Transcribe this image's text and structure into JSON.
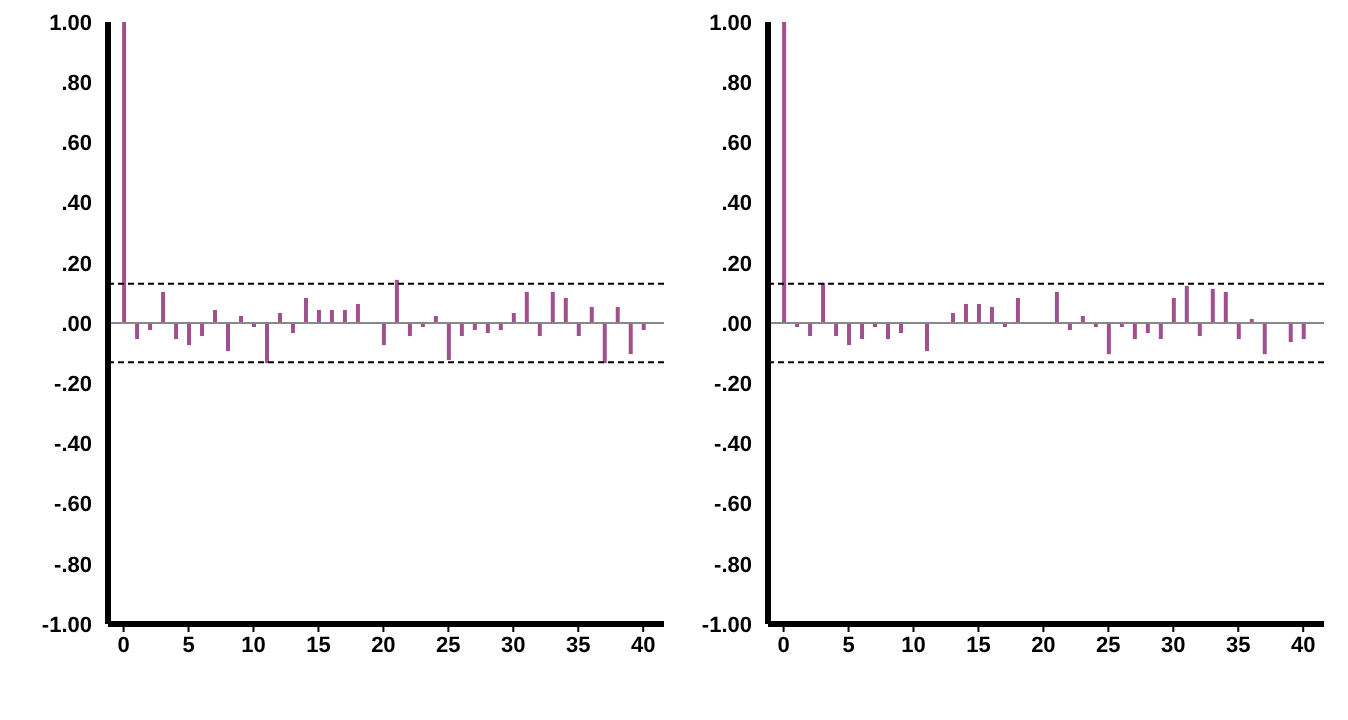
{
  "chart_data": [
    {
      "type": "bar",
      "x": [
        0,
        1,
        2,
        3,
        4,
        5,
        6,
        7,
        8,
        9,
        10,
        11,
        12,
        13,
        14,
        15,
        16,
        17,
        18,
        19,
        20,
        21,
        22,
        23,
        24,
        25,
        26,
        27,
        28,
        29,
        30,
        31,
        32,
        33,
        34,
        35,
        36,
        37,
        38,
        39,
        40
      ],
      "series": [
        {
          "color": "#a0508c",
          "values": [
            1.0,
            -0.05,
            -0.02,
            0.1,
            -0.05,
            -0.07,
            -0.04,
            0.04,
            -0.09,
            0.02,
            -0.01,
            -0.13,
            0.03,
            -0.03,
            0.08,
            0.04,
            0.04,
            0.04,
            0.06,
            0.0,
            -0.07,
            0.14,
            -0.04,
            -0.01,
            0.02,
            -0.12,
            -0.04,
            -0.02,
            -0.03,
            -0.02,
            0.03,
            0.1,
            -0.04,
            0.1,
            0.08,
            -0.04,
            0.05,
            -0.13,
            0.05,
            -0.1,
            -0.02
          ]
        }
      ],
      "xlim": [
        -1.2,
        41.6
      ],
      "xticks": [
        0,
        5,
        10,
        15,
        20,
        25,
        30,
        35,
        40
      ],
      "ylim": [
        -1,
        1
      ],
      "yticks": [
        {
          "value": -1,
          "label": "-1.00"
        },
        {
          "value": -0.8,
          "label": "-.80"
        },
        {
          "value": -0.6,
          "label": "-.60"
        },
        {
          "value": -0.4,
          "label": "-.40"
        },
        {
          "value": -0.2,
          "label": "-.20"
        },
        {
          "value": 0,
          "label": ".00"
        },
        {
          "value": 0.2,
          "label": ".20"
        },
        {
          "value": 0.4,
          "label": ".40"
        },
        {
          "value": 0.6,
          "label": ".60"
        },
        {
          "value": 0.8,
          "label": ".80"
        },
        {
          "value": 1,
          "label": "1.00"
        }
      ],
      "ref_lines": [
        {
          "axis": "y",
          "value": 0,
          "color": "#888888",
          "line_style": "solid"
        },
        {
          "axis": "y",
          "value": 0.13,
          "color": "#000000",
          "line_style": "dashed"
        },
        {
          "axis": "y",
          "value": -0.13,
          "color": "#000000",
          "line_style": "dashed"
        }
      ],
      "grid": false,
      "legend": false
    },
    {
      "type": "bar",
      "x": [
        0,
        1,
        2,
        3,
        4,
        5,
        6,
        7,
        8,
        9,
        10,
        11,
        12,
        13,
        14,
        15,
        16,
        17,
        18,
        19,
        20,
        21,
        22,
        23,
        24,
        25,
        26,
        27,
        28,
        29,
        30,
        31,
        32,
        33,
        34,
        35,
        36,
        37,
        38,
        39,
        40
      ],
      "series": [
        {
          "color": "#a0508c",
          "values": [
            1.0,
            -0.01,
            -0.04,
            0.13,
            -0.04,
            -0.07,
            -0.05,
            -0.01,
            -0.05,
            -0.03,
            0.0,
            -0.09,
            0.0,
            0.03,
            0.06,
            0.06,
            0.05,
            -0.01,
            0.08,
            0.0,
            0.0,
            0.1,
            -0.02,
            0.02,
            -0.01,
            -0.1,
            -0.01,
            -0.05,
            -0.03,
            -0.05,
            0.08,
            0.12,
            -0.04,
            0.11,
            0.1,
            -0.05,
            0.01,
            -0.1,
            0.0,
            -0.06,
            -0.05
          ]
        }
      ],
      "xlim": [
        -1.2,
        41.6
      ],
      "xticks": [
        0,
        5,
        10,
        15,
        20,
        25,
        30,
        35,
        40
      ],
      "ylim": [
        -1,
        1
      ],
      "yticks": [
        {
          "value": -1,
          "label": "-1.00"
        },
        {
          "value": -0.8,
          "label": "-.80"
        },
        {
          "value": -0.6,
          "label": "-.60"
        },
        {
          "value": -0.4,
          "label": "-.40"
        },
        {
          "value": -0.2,
          "label": "-.20"
        },
        {
          "value": 0,
          "label": ".00"
        },
        {
          "value": 0.2,
          "label": ".20"
        },
        {
          "value": 0.4,
          "label": ".40"
        },
        {
          "value": 0.6,
          "label": ".60"
        },
        {
          "value": 0.8,
          "label": ".80"
        },
        {
          "value": 1,
          "label": "1.00"
        }
      ],
      "ref_lines": [
        {
          "axis": "y",
          "value": 0,
          "color": "#888888",
          "line_style": "solid"
        },
        {
          "axis": "y",
          "value": 0.13,
          "color": "#000000",
          "line_style": "dashed"
        },
        {
          "axis": "y",
          "value": -0.13,
          "color": "#000000",
          "line_style": "dashed"
        }
      ],
      "grid": false,
      "legend": false
    }
  ]
}
